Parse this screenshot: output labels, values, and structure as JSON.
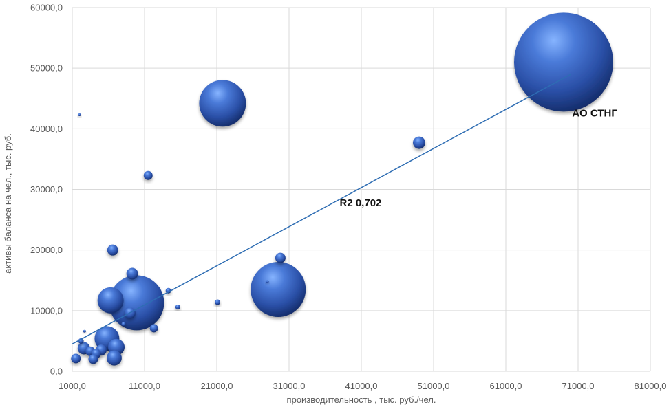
{
  "chart_data": {
    "type": "scatter",
    "subtype": "bubble",
    "title": "",
    "xlabel": "производительность , тыс. руб./чел.",
    "ylabel": "активы баланса на чел., тыс. руб.",
    "xlim": [
      1000,
      81000
    ],
    "ylim": [
      0,
      60000
    ],
    "x_ticks": [
      1000,
      11000,
      21000,
      31000,
      41000,
      51000,
      61000,
      71000,
      81000
    ],
    "x_tick_labels": [
      "1000,0",
      "11000,0",
      "21000,0",
      "31000,0",
      "41000,0",
      "51000,0",
      "61000,0",
      "71000,0",
      "81000,0"
    ],
    "y_ticks": [
      0,
      10000,
      20000,
      30000,
      40000,
      50000,
      60000
    ],
    "y_tick_labels": [
      "0,0",
      "10000,0",
      "20000,0",
      "30000,0",
      "40000,0",
      "50000,0",
      "60000,0"
    ],
    "grid": true,
    "legend": "none",
    "bubble_color": "#2e57b3",
    "trendline": {
      "type": "linear",
      "x": [
        1000,
        70000
      ],
      "y": [
        4500,
        49000
      ],
      "color": "#2e6db3",
      "label": "R2 0,702"
    },
    "points": [
      {
        "x": 69000,
        "y": 51000,
        "size": 72
      },
      {
        "x": 21800,
        "y": 44200,
        "size": 34
      },
      {
        "x": 29500,
        "y": 13500,
        "size": 40
      },
      {
        "x": 9900,
        "y": 11300,
        "size": 40
      },
      {
        "x": 49000,
        "y": 37700,
        "size": 9
      },
      {
        "x": 29800,
        "y": 18700,
        "size": 7.5
      },
      {
        "x": 11500,
        "y": 32300,
        "size": 6.5
      },
      {
        "x": 6600,
        "y": 20000,
        "size": 8
      },
      {
        "x": 9300,
        "y": 16100,
        "size": 8.5
      },
      {
        "x": 6300,
        "y": 11700,
        "size": 19
      },
      {
        "x": 21100,
        "y": 11400,
        "size": 4
      },
      {
        "x": 15600,
        "y": 10600,
        "size": 3.5
      },
      {
        "x": 14300,
        "y": 13300,
        "size": 4
      },
      {
        "x": 9000,
        "y": 9600,
        "size": 8
      },
      {
        "x": 12300,
        "y": 7100,
        "size": 6
      },
      {
        "x": 8100,
        "y": 7800,
        "size": 3
      },
      {
        "x": 5800,
        "y": 5400,
        "size": 18
      },
      {
        "x": 7100,
        "y": 4000,
        "size": 12
      },
      {
        "x": 6800,
        "y": 2200,
        "size": 11
      },
      {
        "x": 5000,
        "y": 3500,
        "size": 8
      },
      {
        "x": 3500,
        "y": 3300,
        "size": 7
      },
      {
        "x": 2600,
        "y": 3800,
        "size": 9
      },
      {
        "x": 4300,
        "y": 2900,
        "size": 7
      },
      {
        "x": 3900,
        "y": 2000,
        "size": 7
      },
      {
        "x": 1500,
        "y": 2100,
        "size": 7
      },
      {
        "x": 2200,
        "y": 5000,
        "size": 4
      },
      {
        "x": 2700,
        "y": 6600,
        "size": 2
      },
      {
        "x": 2000,
        "y": 42300,
        "size": 2
      },
      {
        "x": 28000,
        "y": 14800,
        "size": 2
      }
    ],
    "annotations": [
      {
        "text": "АО СТНГ",
        "x": 73300,
        "y": 42000
      },
      {
        "text": "R2 0,702",
        "x": 40900,
        "y": 27200
      }
    ]
  }
}
